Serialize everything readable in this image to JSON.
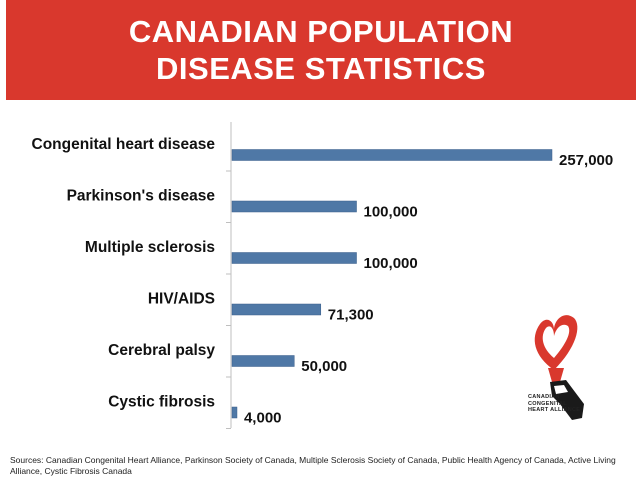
{
  "header": {
    "title_line1": "CANADIAN POPULATION",
    "title_line2": "DISEASE STATISTICS"
  },
  "colors": {
    "banner": "#d9382d",
    "bar": "#4f78a6",
    "bar_outline": "#3a5f8a",
    "logo_red": "#d9382d"
  },
  "chart_data": {
    "type": "bar",
    "orientation": "horizontal",
    "title": "CANADIAN POPULATION DISEASE STATISTICS",
    "categories": [
      "Congenital heart disease",
      "Parkinson's disease",
      "Multiple sclerosis",
      "HIV/AIDS",
      "Cerebral palsy",
      "Cystic fibrosis"
    ],
    "values": [
      257000,
      100000,
      100000,
      71300,
      50000,
      4000
    ],
    "value_labels": [
      "257,000",
      "100,000",
      "100,000",
      "71,300",
      "50,000",
      "4,000"
    ],
    "xlim": [
      0,
      257000
    ],
    "xlabel": "",
    "ylabel": "",
    "grid": false
  },
  "logo": {
    "line1": "CANADIAN",
    "line2": "CONGENITAL",
    "line3": "HEART ALLIANCE"
  },
  "footer": {
    "sources": "Sources: Canadian Congenital Heart Alliance, Parkinson Society of Canada, Multiple Sclerosis Society of Canada, Public Health Agency of Canada, Active Living Alliance, Cystic Fibrosis Canada"
  }
}
